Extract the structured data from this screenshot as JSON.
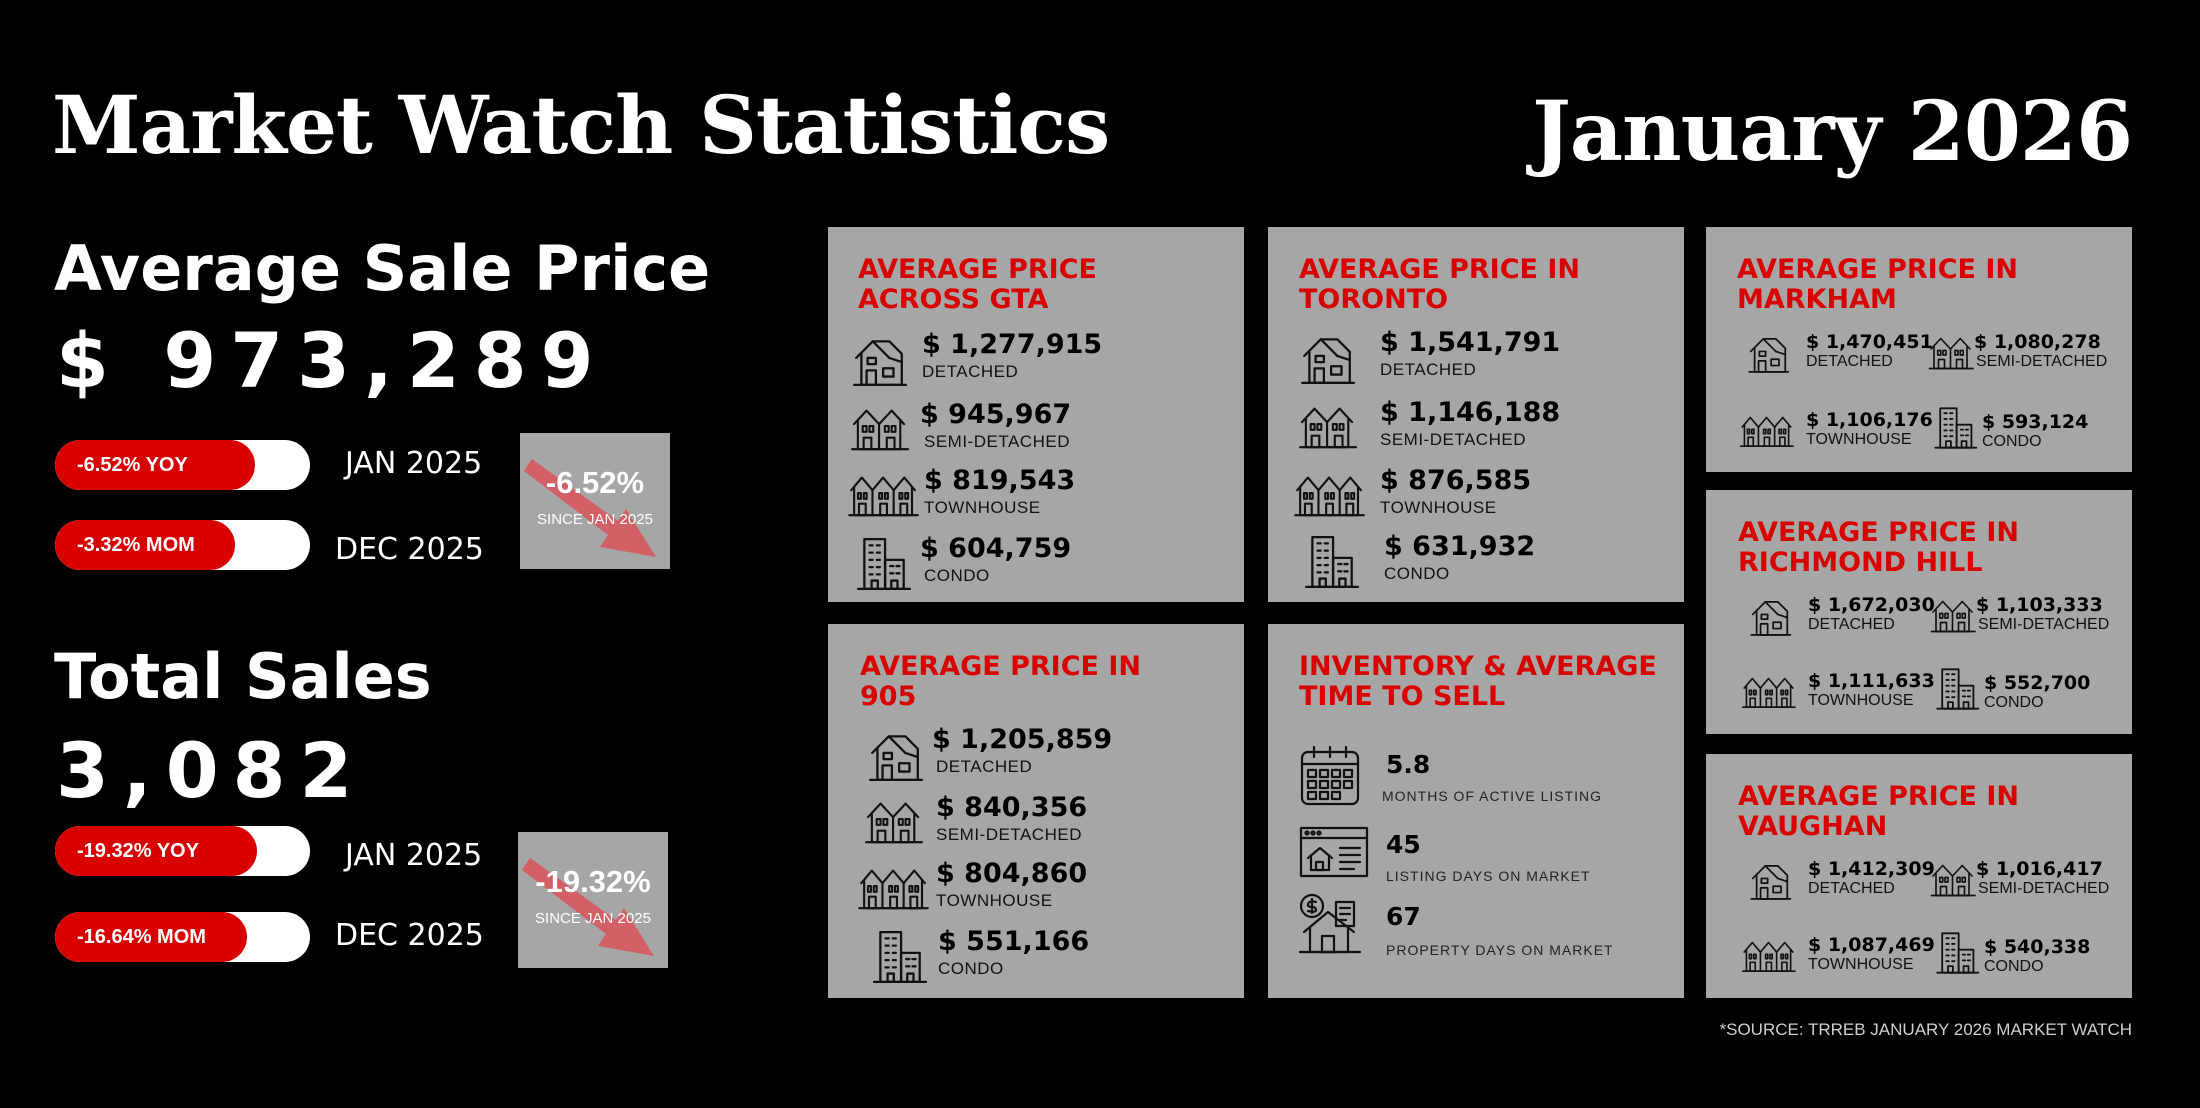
{
  "header": {
    "title": "Market Watch Statistics",
    "date": "January 2026"
  },
  "average_sale_price": {
    "heading": "Average Sale Price",
    "value": "$ 973,289",
    "yoy": {
      "label": "-6.52% YOY",
      "compare": "JAN 2025"
    },
    "mom": {
      "label": "-3.32% MOM",
      "compare": "DEC 2025"
    },
    "change": {
      "pct": "-6.52%",
      "since": "SINCE JAN 2025"
    }
  },
  "total_sales": {
    "heading": "Total Sales",
    "value": "3,082",
    "yoy": {
      "label": "-19.32% YOY",
      "compare": "JAN 2025"
    },
    "mom": {
      "label": "-16.64% MOM",
      "compare": "DEC 2025"
    },
    "change": {
      "pct": "-19.32%",
      "since": "SINCE JAN 2025"
    }
  },
  "cards": {
    "gta": {
      "title_line1": "AVERAGE PRICE",
      "title_line2": "ACROSS GTA",
      "rows": [
        {
          "value": "$ 1,277,915",
          "label": "DETACHED",
          "icon": "detached-house-icon"
        },
        {
          "value": "$ 945,967",
          "label": "SEMI-DETACHED",
          "icon": "semi-detached-icon"
        },
        {
          "value": "$ 819,543",
          "label": "TOWNHOUSE",
          "icon": "townhouse-icon"
        },
        {
          "value": "$ 604,759",
          "label": "CONDO",
          "icon": "condo-building-icon"
        }
      ]
    },
    "toronto": {
      "title_line1": "AVERAGE PRICE IN",
      "title_line2": "TORONTO",
      "rows": [
        {
          "value": "$ 1,541,791",
          "label": "DETACHED",
          "icon": "detached-house-icon"
        },
        {
          "value": "$ 1,146,188",
          "label": "SEMI-DETACHED",
          "icon": "semi-detached-icon"
        },
        {
          "value": "$ 876,585",
          "label": "TOWNHOUSE",
          "icon": "townhouse-icon"
        },
        {
          "value": "$ 631,932",
          "label": "CONDO",
          "icon": "condo-building-icon"
        }
      ]
    },
    "region905": {
      "title_line1": "AVERAGE PRICE IN",
      "title_line2": "905",
      "rows": [
        {
          "value": "$ 1,205,859",
          "label": "DETACHED",
          "icon": "detached-house-icon"
        },
        {
          "value": "$ 840,356",
          "label": "SEMI-DETACHED",
          "icon": "semi-detached-icon"
        },
        {
          "value": "$ 804,860",
          "label": "TOWNHOUSE",
          "icon": "townhouse-icon"
        },
        {
          "value": "$ 551,166",
          "label": "CONDO",
          "icon": "condo-building-icon"
        }
      ]
    },
    "inventory": {
      "title_line1": "INVENTORY & AVERAGE",
      "title_line2": "TIME TO SELL",
      "rows": [
        {
          "value": "5.8",
          "label": "MONTHS OF ACTIVE LISTING",
          "icon": "calendar-icon"
        },
        {
          "value": "45",
          "label": "LISTING DAYS ON MARKET",
          "icon": "listing-browser-icon"
        },
        {
          "value": "67",
          "label": "PROPERTY DAYS ON MARKET",
          "icon": "property-dollar-icon"
        }
      ]
    },
    "markham": {
      "title_line1": "AVERAGE PRICE IN",
      "title_line2": "MARKHAM",
      "rows": [
        {
          "value": "$ 1,470,451",
          "label": "DETACHED"
        },
        {
          "value": "$ 1,080,278",
          "label": "SEMI-DETACHED"
        },
        {
          "value": "$ 1,106,176",
          "label": "TOWNHOUSE"
        },
        {
          "value": "$ 593,124",
          "label": "CONDO"
        }
      ]
    },
    "richmond_hill": {
      "title_line1": "AVERAGE PRICE IN",
      "title_line2": "RICHMOND HILL",
      "rows": [
        {
          "value": "$ 1,672,030",
          "label": "DETACHED"
        },
        {
          "value": "$ 1,103,333",
          "label": "SEMI-DETACHED"
        },
        {
          "value": "$ 1,111,633",
          "label": "TOWNHOUSE"
        },
        {
          "value": "$ 552,700",
          "label": "CONDO"
        }
      ]
    },
    "vaughan": {
      "title_line1": "AVERAGE PRICE IN",
      "title_line2": "VAUGHAN",
      "rows": [
        {
          "value": "$ 1,412,309",
          "label": "DETACHED"
        },
        {
          "value": "$ 1,016,417",
          "label": "SEMI-DETACHED"
        },
        {
          "value": "$ 1,087,469",
          "label": "TOWNHOUSE"
        },
        {
          "value": "$ 540,338",
          "label": "CONDO"
        }
      ]
    }
  },
  "colors": {
    "accent": "#d90000",
    "card_bg": "#a6a6a6",
    "background": "#000000"
  },
  "source": "*SOURCE: TRREB JANUARY 2026 MARKET WATCH"
}
